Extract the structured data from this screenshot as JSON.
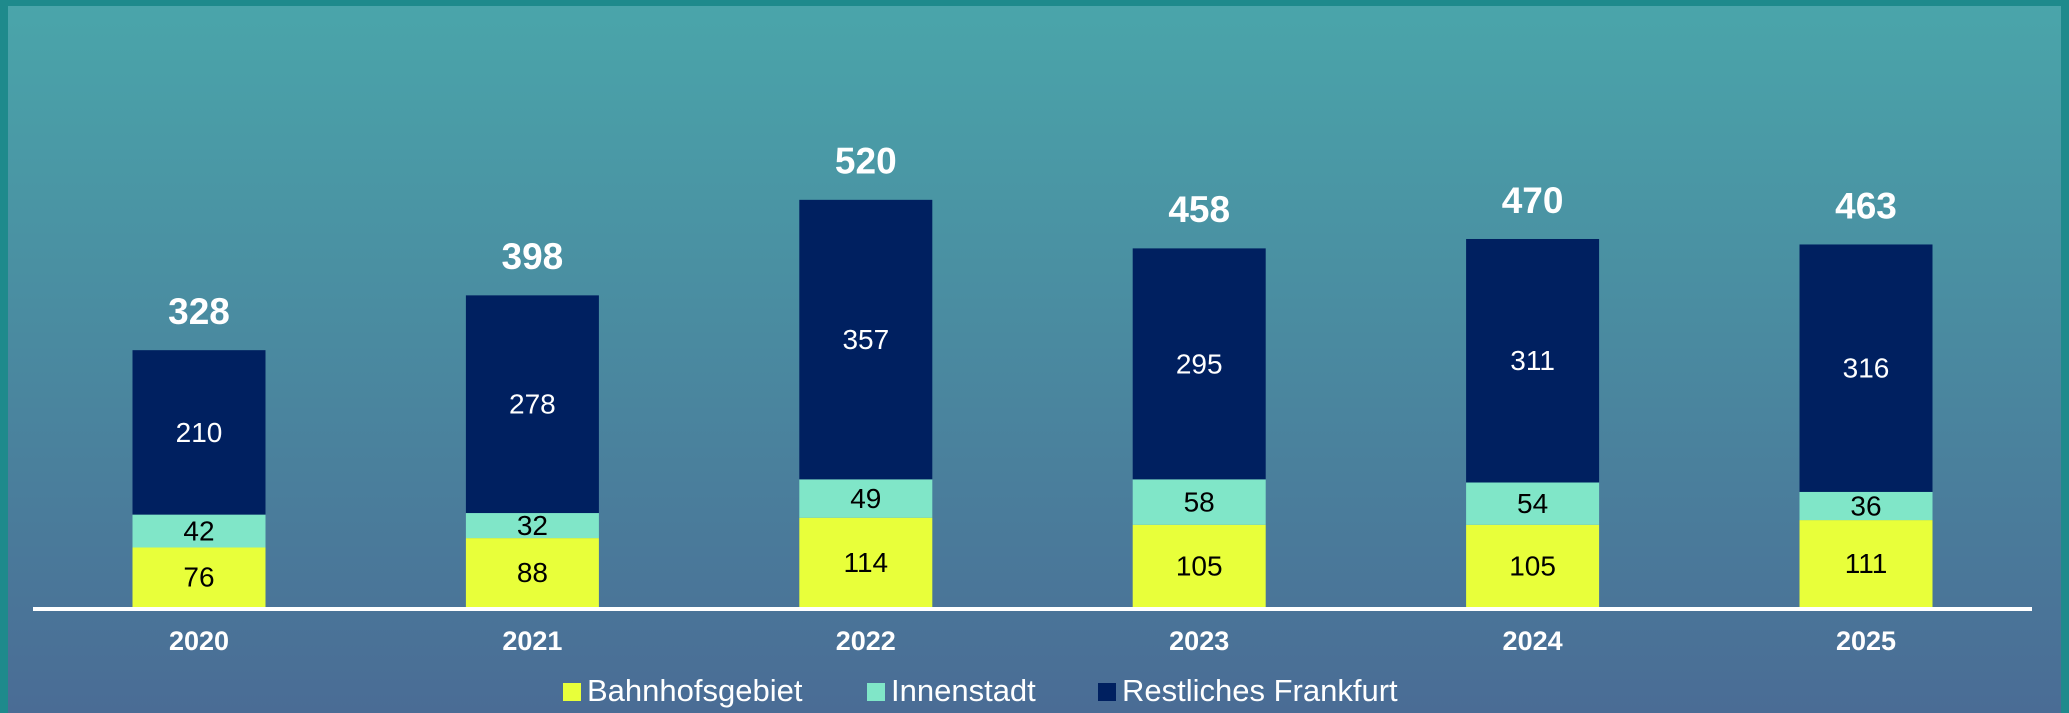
{
  "chart_data": {
    "type": "stacked_bar",
    "categories": [
      "2020",
      "2021",
      "2022",
      "2023",
      "2024",
      "2025"
    ],
    "series": [
      {
        "name": "Bahnhofsgebiet",
        "color": "#e8ff3a",
        "values": [
          76,
          88,
          114,
          105,
          105,
          111
        ]
      },
      {
        "name": "Innenstadt",
        "color": "#80e6c8",
        "values": [
          42,
          32,
          49,
          58,
          54,
          36
        ]
      },
      {
        "name": "Restliches Frankfurt",
        "color": "#002060",
        "values": [
          210,
          278,
          357,
          295,
          311,
          316
        ]
      }
    ],
    "totals": [
      328,
      398,
      520,
      458,
      470,
      463
    ],
    "legend": "bottom"
  }
}
